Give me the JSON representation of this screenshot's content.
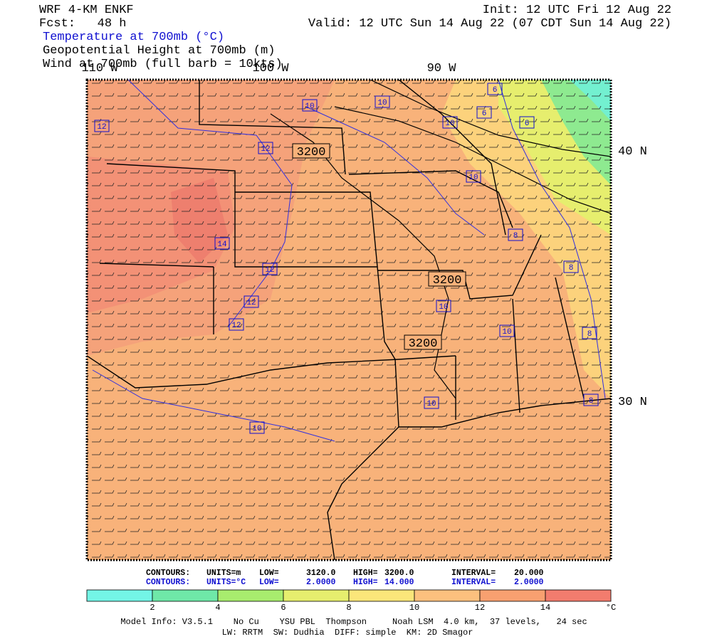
{
  "header": {
    "model": "WRF 4-KM ENKF",
    "forecast": "Fcst:   48 h",
    "init": "Init: 12 UTC Fri 12 Aug 22",
    "valid": "Valid: 12 UTC Sun 14 Aug 22 (07 CDT Sun 14 Aug 22)"
  },
  "fields": [
    "Temperature at 700mb (°C)",
    "Geopotential Height at 700mb (m)",
    "Wind at 700mb (full barb = 10kts)"
  ],
  "map": {
    "longitude_labels": [
      "110 W",
      "100 W",
      "90 W"
    ],
    "latitude_labels": [
      "40 N",
      "30 N"
    ],
    "height_contour_labels": [
      "3200",
      "3200",
      "3200"
    ],
    "temperature_contour_labels": [
      "12",
      "10",
      "10",
      "6",
      "6",
      "10",
      "6",
      "12",
      "10",
      "14",
      "8",
      "12",
      "8",
      "12",
      "10",
      "12",
      "10",
      "8",
      "10",
      "8",
      "10"
    ]
  },
  "contour_info": [
    [
      "CONTOURS:",
      "UNITS=m",
      "LOW=",
      "3120.0",
      "HIGH=",
      "3200.0",
      "INTERVAL=",
      "20.000"
    ],
    [
      "CONTOURS:",
      "UNITS=°C",
      "LOW=",
      "2.0000",
      "HIGH=",
      "14.000",
      "INTERVAL=",
      "2.0000"
    ]
  ],
  "colorbar": {
    "colors": [
      "#73f5e6",
      "#6fe8a8",
      "#a8ec6e",
      "#e6ee6e",
      "#fbe67a",
      "#fcc07e",
      "#f8a070",
      "#f27c6e"
    ],
    "ticks": [
      2,
      4,
      6,
      8,
      10,
      12,
      14
    ],
    "unit": "°C"
  },
  "model_info": [
    "Model Info: V3.5.1    No Cu    YSU PBL  Thompson     Noah LSM  4.0 km,  37 levels,   24 sec",
    "LW: RRTM  SW: Dudhia  DIFF: simple  KM: 2D Smagor"
  ]
}
